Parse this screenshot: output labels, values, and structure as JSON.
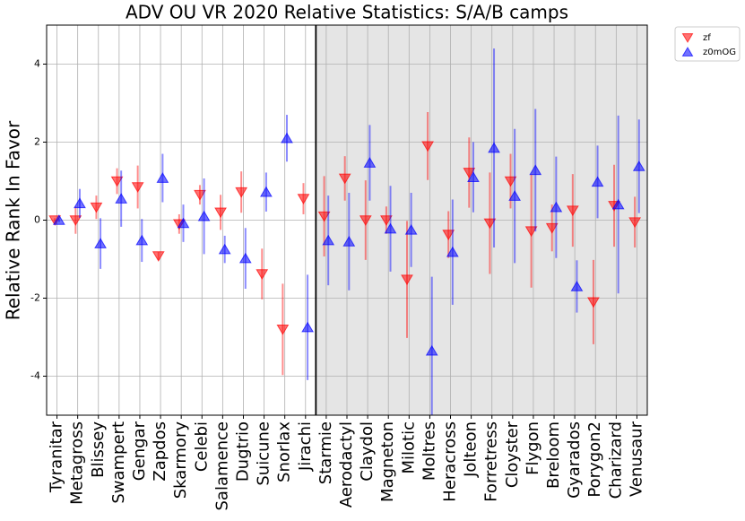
{
  "chart_data": {
    "type": "errorbar",
    "title": "ADV OU VR 2020 Relative Statistics: S/A/B camps",
    "ylabel": "Relative Rank In Favor",
    "categories": [
      "Tyranitar",
      "Metagross",
      "Blissey",
      "Swampert",
      "Gengar",
      "Zapdos",
      "Skarmory",
      "Celebi",
      "Salamence",
      "Dugtrio",
      "Suicune",
      "Snorlax",
      "Jirachi",
      "Starmie",
      "Aerodactyl",
      "Claydol",
      "Magneton",
      "Milotic",
      "Moltres",
      "Heracross",
      "Jolteon",
      "Forretress",
      "Cloyster",
      "Flygon",
      "Breloom",
      "Gyarados",
      "Porygon2",
      "Charizard",
      "Venusaur"
    ],
    "series": [
      {
        "name": "zf",
        "color": "#ff0000",
        "marker": "down",
        "values": [
          0,
          0,
          0.33,
          1.0,
          0.85,
          -0.92,
          -0.1,
          0.65,
          0.2,
          0.72,
          -1.38,
          -2.8,
          0.55,
          0.1,
          1.07,
          0,
          0,
          -1.52,
          1.9,
          -0.37,
          1.22,
          -0.08,
          1.0,
          -0.28,
          -0.2,
          0.25,
          -2.1,
          0.37,
          -0.05
        ],
        "errors": [
          0.05,
          0.35,
          0.3,
          0.33,
          0.55,
          0.1,
          0.25,
          0.25,
          0.45,
          0.53,
          0.65,
          1.17,
          0.4,
          1.03,
          0.57,
          1.02,
          0.35,
          1.5,
          0.87,
          0.6,
          0.9,
          1.3,
          0.7,
          1.45,
          0.6,
          0.93,
          1.08,
          1.05,
          0.65
        ]
      },
      {
        "name": "z0mOG",
        "color": "#0000ff",
        "marker": "up",
        "values": [
          0,
          0.43,
          -0.6,
          0.55,
          -0.52,
          1.08,
          -0.08,
          0.1,
          -0.75,
          -0.98,
          0.72,
          2.1,
          -2.75,
          -0.52,
          -0.55,
          1.47,
          -0.22,
          -0.25,
          -3.35,
          -0.82,
          1.1,
          1.85,
          0.62,
          1.28,
          0.33,
          -1.7,
          0.98,
          0.4,
          1.38
        ],
        "errors": [
          0.05,
          0.37,
          0.65,
          0.72,
          0.55,
          0.62,
          0.48,
          0.97,
          0.35,
          0.78,
          0.5,
          0.6,
          1.35,
          1.15,
          1.25,
          0.97,
          1.1,
          0.95,
          1.9,
          1.35,
          0.9,
          2.55,
          1.72,
          1.57,
          1.3,
          0.67,
          0.93,
          2.28,
          1.2
        ]
      }
    ],
    "ylim": [
      -5,
      5
    ],
    "yticks": [
      -4,
      -2,
      0,
      2,
      4
    ],
    "grid": true,
    "divider": 12.5,
    "legend": "outside upper right"
  }
}
